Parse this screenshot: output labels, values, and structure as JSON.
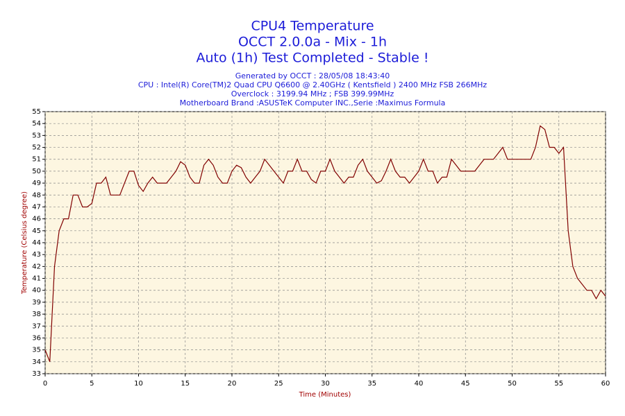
{
  "chart_data": {
    "type": "line",
    "title": "CPU4 Temperature",
    "subtitle_lines": [
      "OCCT 2.0.0a - Mix - 1h",
      "Auto (1h) Test Completed - Stable !"
    ],
    "info_lines": [
      "Generated by OCCT : 28/05/08 18:43:40",
      "CPU : Intel(R) Core(TM)2 Quad CPU Q6600 @ 2.40GHz ( Kentsfield ) 2400 MHz FSB 266MHz",
      "Overclock : 3199.94 MHz ; FSB 399.99MHz",
      "Motherboard Brand :ASUSTeK Computer INC.,Serie :Maximus Formula"
    ],
    "xlabel": "Time (Minutes)",
    "ylabel": "Temperature (Celsius degree)",
    "x": [
      0,
      0.5,
      1,
      1.5,
      2,
      2.5,
      3,
      3.5,
      4,
      4.5,
      5,
      5.5,
      6,
      6.5,
      7,
      7.5,
      8,
      8.5,
      9,
      9.5,
      10,
      10.5,
      11,
      11.5,
      12,
      12.5,
      13,
      13.5,
      14,
      14.5,
      15,
      15.5,
      16,
      16.5,
      17,
      17.5,
      18,
      18.5,
      19,
      19.5,
      20,
      20.5,
      21,
      21.5,
      22,
      22.5,
      23,
      23.5,
      24,
      24.5,
      25,
      25.5,
      26,
      26.5,
      27,
      27.5,
      28,
      28.5,
      29,
      29.5,
      30,
      30.5,
      31,
      31.5,
      32,
      32.5,
      33,
      33.5,
      34,
      34.5,
      35,
      35.5,
      36,
      36.5,
      37,
      37.5,
      38,
      38.5,
      39,
      39.5,
      40,
      40.5,
      41,
      41.5,
      42,
      42.5,
      43,
      43.5,
      44,
      44.5,
      45,
      45.5,
      46,
      46.5,
      47,
      47.5,
      48,
      48.5,
      49,
      49.5,
      50,
      50.5,
      51,
      51.5,
      52,
      52.5,
      53,
      53.5,
      54,
      54.5,
      55,
      55.5,
      56,
      56.5,
      57,
      57.5,
      58,
      58.5,
      59,
      59.5,
      60
    ],
    "series": [
      {
        "name": "CPU4",
        "color": "#800000",
        "values": [
          35,
          34,
          42,
          45,
          46,
          46,
          48,
          48,
          47,
          47,
          47.3,
          49,
          49,
          49.5,
          48,
          48,
          48,
          49,
          50,
          50,
          48.8,
          48.3,
          49,
          49.5,
          49,
          49,
          49,
          49.5,
          50,
          50.8,
          50.5,
          49.5,
          49,
          49,
          50.5,
          51,
          50.5,
          49.5,
          49,
          49,
          50,
          50.5,
          50.3,
          49.5,
          49,
          49.5,
          50,
          51,
          50.5,
          50,
          49.5,
          49,
          50,
          50,
          51,
          50,
          50,
          49.3,
          49,
          50,
          50,
          51,
          50,
          49.5,
          49,
          49.5,
          49.5,
          50.5,
          51,
          50,
          49.5,
          49,
          49.2,
          50,
          51,
          50,
          49.5,
          49.5,
          49,
          49.5,
          50,
          51,
          50,
          50,
          49,
          49.5,
          49.5,
          51,
          50.5,
          50,
          50,
          50,
          50,
          50.5,
          51,
          51,
          51,
          51.5,
          52,
          51,
          51,
          51,
          51,
          51,
          51,
          52,
          53.8,
          53.5,
          52,
          52,
          51.5,
          52,
          45,
          42,
          41,
          40.5,
          40,
          40,
          39.3,
          40,
          39.5
        ]
      }
    ],
    "xlim": [
      0,
      60
    ],
    "xticks": [
      0,
      5,
      10,
      15,
      20,
      25,
      30,
      35,
      40,
      45,
      50,
      55,
      60
    ],
    "ylim": [
      33,
      55
    ],
    "yticks": [
      33,
      34,
      35,
      36,
      37,
      38,
      39,
      40,
      41,
      42,
      43,
      44,
      45,
      46,
      47,
      48,
      49,
      50,
      51,
      52,
      53,
      54,
      55
    ],
    "grid": true
  }
}
